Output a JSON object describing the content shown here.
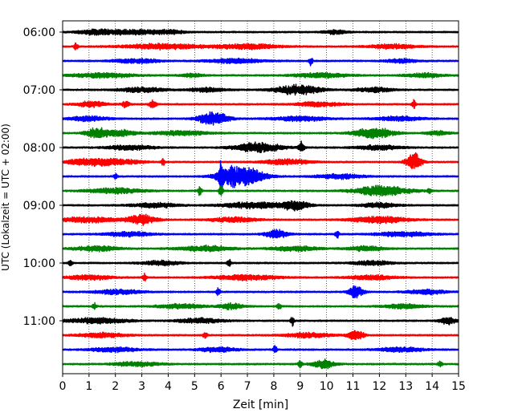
{
  "chart_data": {
    "type": "line",
    "title": "",
    "xlabel": "Zeit  [min]",
    "ylabel": "UTC (Lokalzeit = UTC + 02:00)",
    "xlim": [
      0,
      15
    ],
    "x_ticks": [
      "0",
      "1",
      "2",
      "3",
      "4",
      "5",
      "6",
      "7",
      "8",
      "9",
      "10",
      "11",
      "12",
      "13",
      "14",
      "15"
    ],
    "y_ticks": [
      "06:00",
      "07:00",
      "08:00",
      "09:00",
      "10:00",
      "11:00"
    ],
    "y_tick_rows": [
      0,
      4,
      8,
      12,
      16,
      20
    ],
    "grid": "vertical dotted",
    "trace_color_cycle": [
      "#000000",
      "#ff0000",
      "#0000ff",
      "#008000"
    ],
    "traces": [
      {
        "start": "06:00",
        "color": "#000000",
        "bursts": [
          [
            1.2,
            0.45,
            0.3
          ],
          [
            2.5,
            0.8,
            0.35
          ],
          [
            4.0,
            0.4,
            0.3
          ],
          [
            10.3,
            0.3,
            0.3
          ]
        ]
      },
      {
        "start": "06:15",
        "color": "#ff0000",
        "bursts": [
          [
            0.5,
            0.05,
            0.6
          ],
          [
            3.8,
            1.0,
            0.4
          ],
          [
            7.0,
            0.8,
            0.4
          ],
          [
            12.5,
            0.6,
            0.35
          ]
        ]
      },
      {
        "start": "06:30",
        "color": "#0000ff",
        "bursts": [
          [
            2.8,
            0.6,
            0.35
          ],
          [
            6.5,
            0.7,
            0.35
          ],
          [
            9.4,
            0.05,
            0.6
          ],
          [
            12.8,
            0.4,
            0.3
          ]
        ]
      },
      {
        "start": "06:45",
        "color": "#008000",
        "bursts": [
          [
            1.5,
            0.8,
            0.35
          ],
          [
            4.9,
            0.3,
            0.3
          ],
          [
            9.8,
            0.7,
            0.35
          ],
          [
            13.7,
            0.5,
            0.3
          ]
        ]
      },
      {
        "start": "07:00",
        "color": "#000000",
        "bursts": [
          [
            3.0,
            0.6,
            0.35
          ],
          [
            5.5,
            0.5,
            0.3
          ],
          [
            8.9,
            0.6,
            0.7
          ],
          [
            11.8,
            0.5,
            0.35
          ]
        ]
      },
      {
        "start": "07:15",
        "color": "#ff0000",
        "bursts": [
          [
            1.1,
            0.4,
            0.4
          ],
          [
            2.4,
            0.1,
            0.45
          ],
          [
            3.4,
            0.1,
            0.55
          ],
          [
            9.7,
            0.6,
            0.35
          ],
          [
            13.3,
            0.05,
            0.7
          ]
        ]
      },
      {
        "start": "07:30",
        "color": "#0000ff",
        "bursts": [
          [
            1.0,
            0.5,
            0.35
          ],
          [
            5.7,
            0.4,
            0.95
          ],
          [
            9.0,
            0.7,
            0.35
          ],
          [
            12.7,
            0.6,
            0.35
          ]
        ]
      },
      {
        "start": "07:45",
        "color": "#008000",
        "bursts": [
          [
            1.3,
            0.3,
            0.7
          ],
          [
            2.2,
            0.4,
            0.45
          ],
          [
            4.5,
            0.7,
            0.35
          ],
          [
            11.8,
            0.5,
            0.8
          ],
          [
            14.2,
            0.3,
            0.3
          ]
        ]
      },
      {
        "start": "08:00",
        "color": "#000000",
        "bursts": [
          [
            2.6,
            0.6,
            0.35
          ],
          [
            7.4,
            0.6,
            0.75
          ],
          [
            9.05,
            0.08,
            0.9
          ],
          [
            12.0,
            0.6,
            0.35
          ]
        ]
      },
      {
        "start": "08:15",
        "color": "#ff0000",
        "bursts": [
          [
            0.9,
            0.5,
            0.5
          ],
          [
            2.1,
            0.6,
            0.45
          ],
          [
            3.8,
            0.05,
            0.55
          ],
          [
            8.5,
            0.6,
            0.4
          ],
          [
            13.3,
            0.2,
            1.3
          ]
        ]
      },
      {
        "start": "08:30",
        "color": "#0000ff",
        "bursts": [
          [
            2.0,
            0.05,
            0.4
          ],
          [
            6.0,
            0.05,
            2.2
          ],
          [
            6.5,
            0.45,
            1.5
          ],
          [
            7.3,
            0.4,
            0.7
          ],
          [
            10.5,
            0.6,
            0.35
          ]
        ]
      },
      {
        "start": "08:45",
        "color": "#008000",
        "bursts": [
          [
            2.0,
            0.7,
            0.4
          ],
          [
            5.2,
            0.05,
            0.7
          ],
          [
            6.0,
            0.05,
            0.9
          ],
          [
            12.1,
            0.7,
            0.8
          ],
          [
            13.9,
            0.05,
            0.5
          ]
        ]
      },
      {
        "start": "09:00",
        "color": "#000000",
        "bursts": [
          [
            3.5,
            0.6,
            0.35
          ],
          [
            7.2,
            0.8,
            0.45
          ],
          [
            8.8,
            0.4,
            0.65
          ],
          [
            12.0,
            0.5,
            0.35
          ]
        ]
      },
      {
        "start": "09:15",
        "color": "#ff0000",
        "bursts": [
          [
            1.0,
            0.7,
            0.4
          ],
          [
            3.0,
            0.4,
            0.7
          ],
          [
            6.5,
            0.6,
            0.35
          ],
          [
            12.0,
            0.7,
            0.55
          ]
        ]
      },
      {
        "start": "09:30",
        "color": "#0000ff",
        "bursts": [
          [
            2.5,
            0.6,
            0.35
          ],
          [
            8.1,
            0.3,
            0.6
          ],
          [
            10.4,
            0.05,
            0.55
          ],
          [
            12.9,
            0.7,
            0.35
          ]
        ]
      },
      {
        "start": "09:45",
        "color": "#008000",
        "bursts": [
          [
            1.3,
            0.6,
            0.35
          ],
          [
            5.4,
            0.7,
            0.4
          ],
          [
            8.8,
            0.6,
            0.35
          ],
          [
            11.5,
            0.5,
            0.35
          ]
        ]
      },
      {
        "start": "10:00",
        "color": "#000000",
        "bursts": [
          [
            0.3,
            0.05,
            0.5
          ],
          [
            3.7,
            0.5,
            0.35
          ],
          [
            6.3,
            0.05,
            0.55
          ],
          [
            11.7,
            0.5,
            0.35
          ]
        ]
      },
      {
        "start": "10:15",
        "color": "#ff0000",
        "bursts": [
          [
            1.0,
            0.6,
            0.35
          ],
          [
            3.1,
            0.05,
            0.6
          ],
          [
            7.0,
            0.8,
            0.4
          ],
          [
            11.7,
            0.6,
            0.35
          ]
        ]
      },
      {
        "start": "10:30",
        "color": "#0000ff",
        "bursts": [
          [
            2.1,
            0.6,
            0.35
          ],
          [
            5.9,
            0.05,
            0.6
          ],
          [
            11.1,
            0.2,
            0.9
          ],
          [
            13.8,
            0.5,
            0.35
          ]
        ]
      },
      {
        "start": "10:45",
        "color": "#008000",
        "bursts": [
          [
            1.2,
            0.05,
            0.45
          ],
          [
            4.5,
            0.6,
            0.35
          ],
          [
            6.4,
            0.3,
            0.45
          ],
          [
            8.2,
            0.05,
            0.55
          ],
          [
            12.9,
            0.5,
            0.35
          ]
        ]
      },
      {
        "start": "11:00",
        "color": "#000000",
        "bursts": [
          [
            1.3,
            0.8,
            0.4
          ],
          [
            5.2,
            0.6,
            0.35
          ],
          [
            8.7,
            0.05,
            0.7
          ],
          [
            14.6,
            0.2,
            0.6
          ]
        ]
      },
      {
        "start": "11:15",
        "color": "#ff0000",
        "bursts": [
          [
            1.5,
            0.6,
            0.35
          ],
          [
            5.4,
            0.05,
            0.5
          ],
          [
            9.3,
            0.6,
            0.35
          ],
          [
            11.1,
            0.2,
            0.8
          ]
        ]
      },
      {
        "start": "11:30",
        "color": "#0000ff",
        "bursts": [
          [
            2.0,
            0.6,
            0.35
          ],
          [
            5.9,
            0.5,
            0.35
          ],
          [
            8.05,
            0.05,
            0.65
          ],
          [
            12.8,
            0.6,
            0.35
          ]
        ]
      },
      {
        "start": "11:45",
        "color": "#008000",
        "bursts": [
          [
            2.8,
            0.6,
            0.35
          ],
          [
            9.0,
            0.05,
            0.6
          ],
          [
            9.9,
            0.3,
            0.6
          ],
          [
            14.3,
            0.05,
            0.5
          ]
        ]
      }
    ]
  }
}
